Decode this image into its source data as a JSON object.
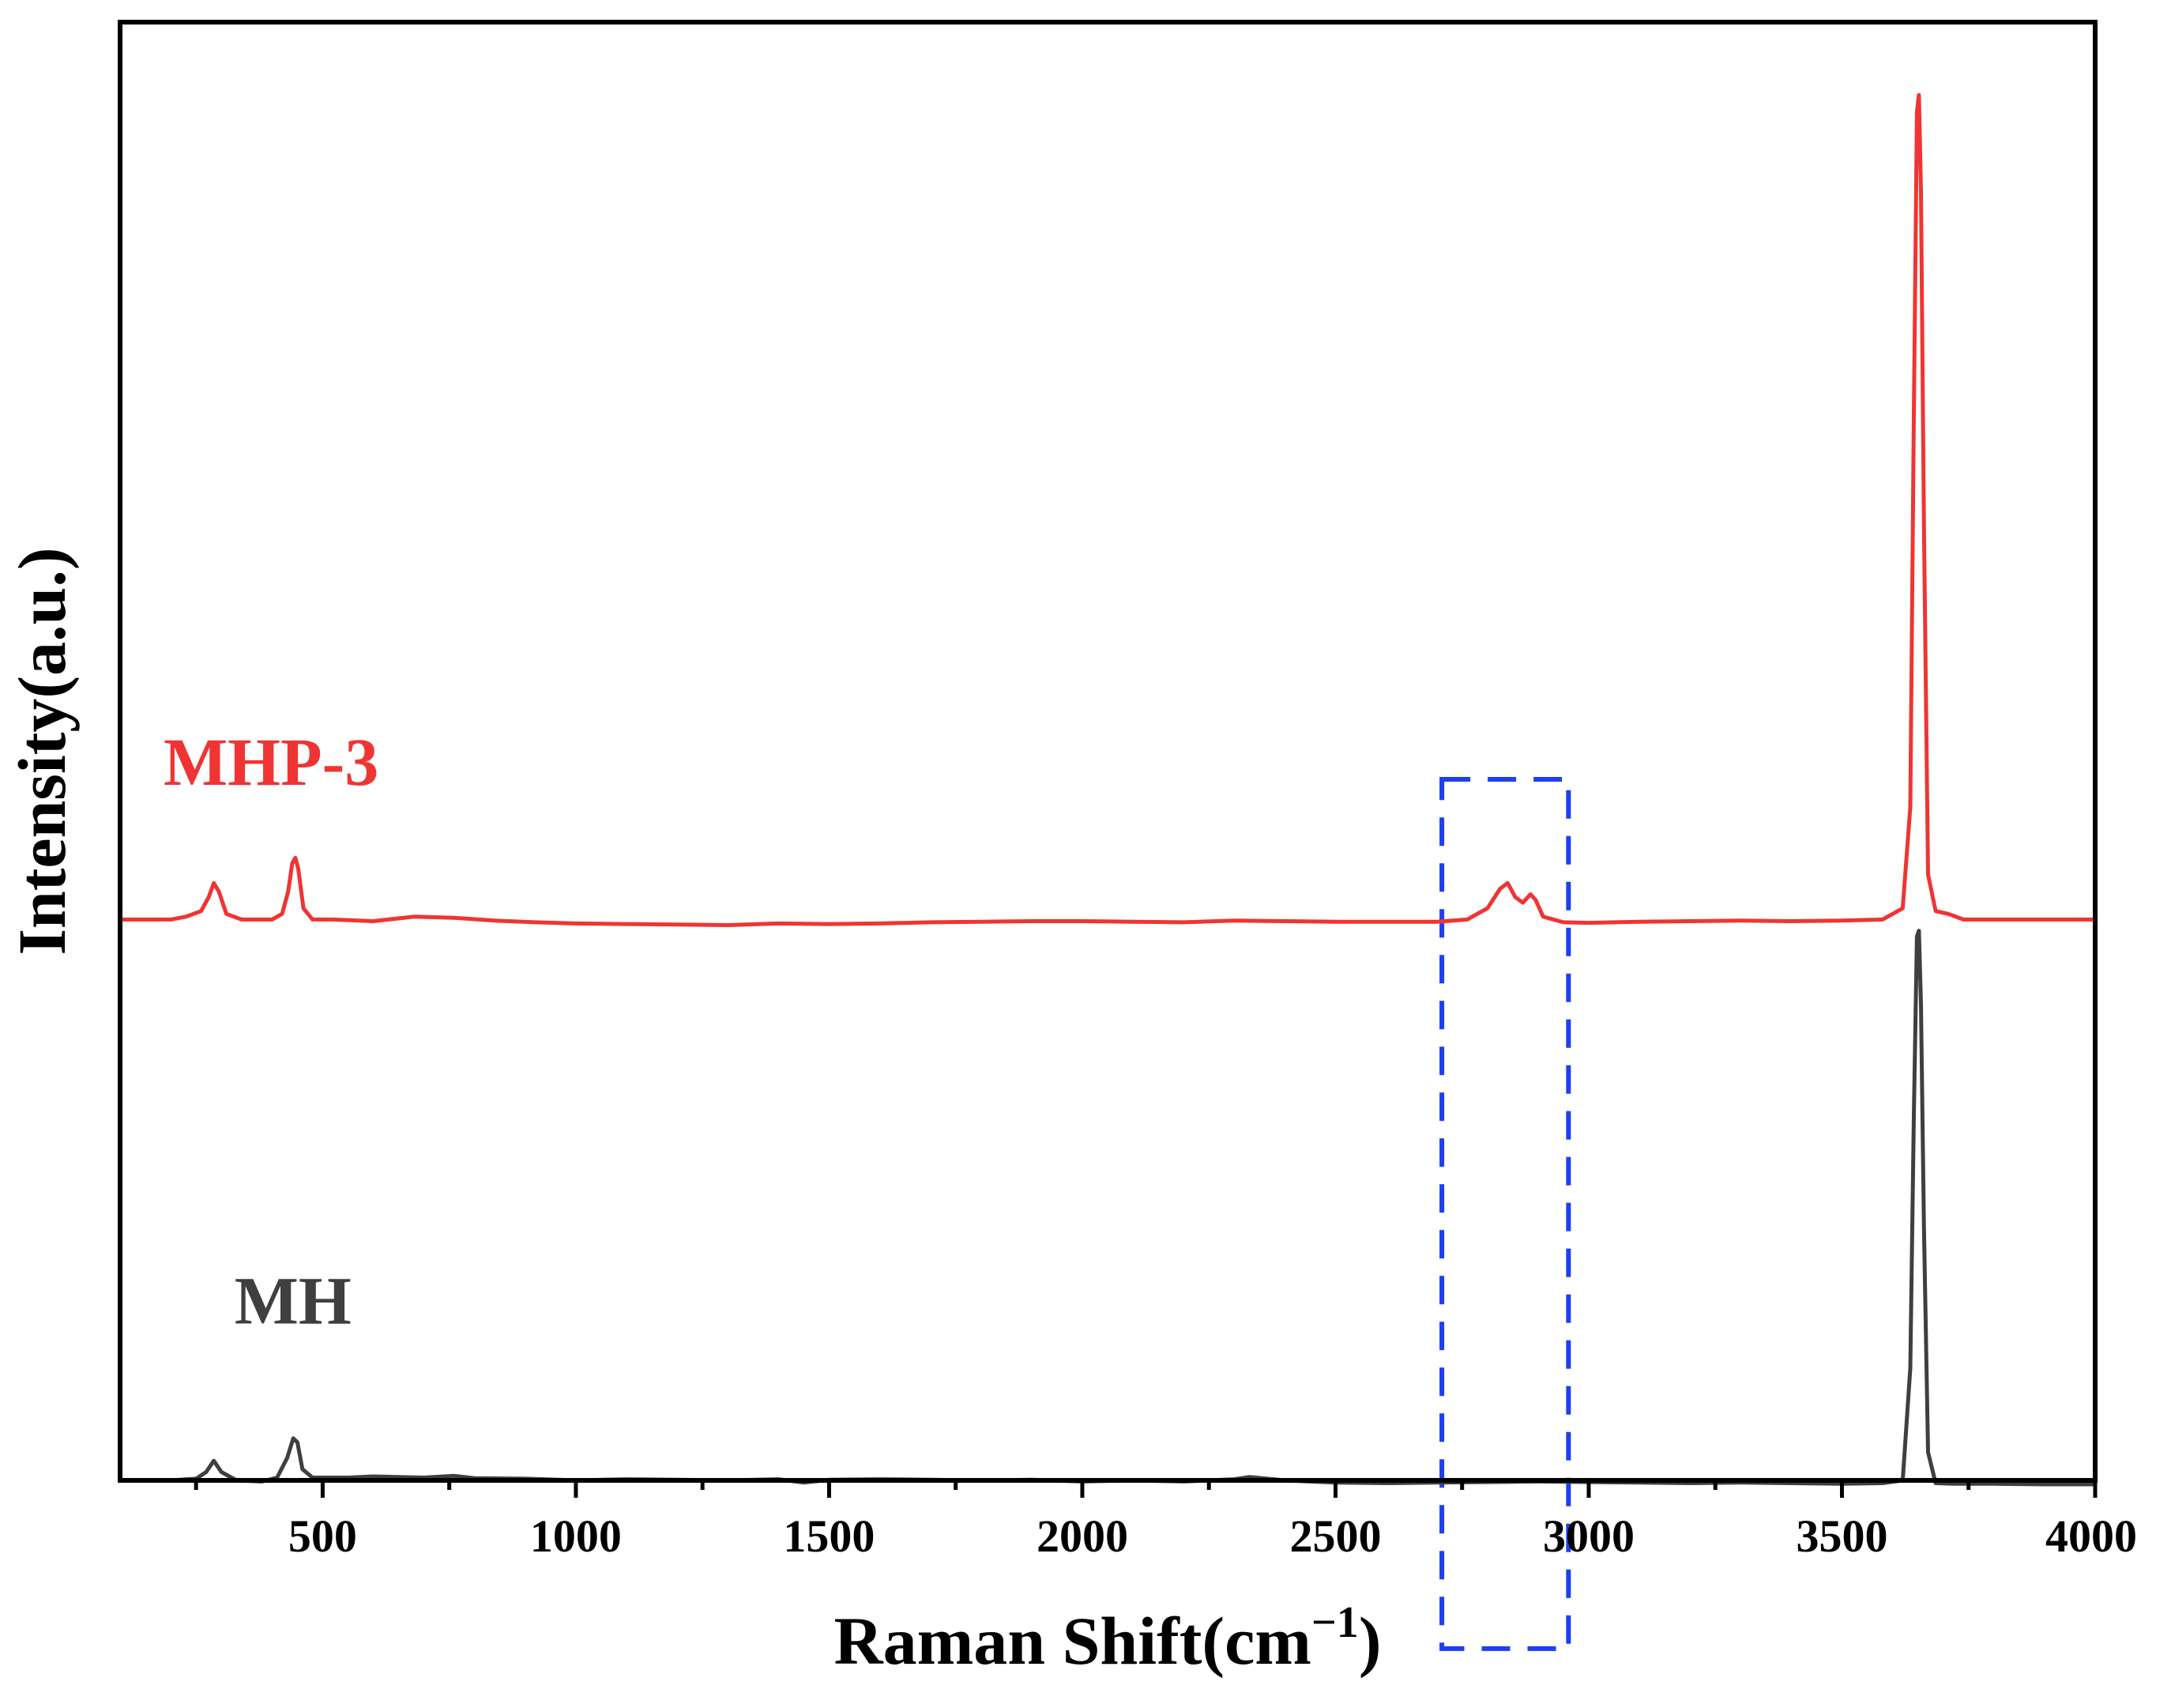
{
  "chart_data": {
    "type": "line",
    "xlabel": "Raman Shift(cm",
    "xlabel_sup": "−1",
    "xlabel_close": ")",
    "ylabel": "Intensity(a.u.)",
    "xlim": [
      100,
      4000
    ],
    "ylim": [
      0,
      2.6
    ],
    "x_ticks": [
      500,
      1000,
      1500,
      2000,
      2500,
      3000,
      3500,
      4000
    ],
    "x_minor_step": 250,
    "y_ticks_shown": false,
    "grid": false,
    "legend": "none (series labelled inline)",
    "series": [
      {
        "name": "MHP-3",
        "color": "#f03434",
        "label_at": [
          100,
          1.24
        ],
        "points": [
          [
            100,
            1.0
          ],
          [
            160,
            1.0
          ],
          [
            200,
            1.0
          ],
          [
            230,
            1.005
          ],
          [
            260,
            1.015
          ],
          [
            275,
            1.04
          ],
          [
            285,
            1.065
          ],
          [
            295,
            1.05
          ],
          [
            310,
            1.01
          ],
          [
            340,
            1.0
          ],
          [
            370,
            1.0
          ],
          [
            400,
            1.0
          ],
          [
            420,
            1.01
          ],
          [
            432,
            1.05
          ],
          [
            440,
            1.1
          ],
          [
            446,
            1.11
          ],
          [
            452,
            1.09
          ],
          [
            462,
            1.02
          ],
          [
            480,
            1.0
          ],
          [
            520,
            1.0
          ],
          [
            600,
            0.997
          ],
          [
            680,
            1.005
          ],
          [
            760,
            1.003
          ],
          [
            840,
            0.998
          ],
          [
            920,
            0.995
          ],
          [
            1000,
            0.993
          ],
          [
            1100,
            0.992
          ],
          [
            1200,
            0.991
          ],
          [
            1300,
            0.99
          ],
          [
            1400,
            0.993
          ],
          [
            1500,
            0.992
          ],
          [
            1600,
            0.993
          ],
          [
            1700,
            0.995
          ],
          [
            1800,
            0.996
          ],
          [
            1900,
            0.997
          ],
          [
            2000,
            0.997
          ],
          [
            2100,
            0.996
          ],
          [
            2200,
            0.995
          ],
          [
            2300,
            0.998
          ],
          [
            2400,
            0.997
          ],
          [
            2500,
            0.996
          ],
          [
            2600,
            0.996
          ],
          [
            2700,
            0.996
          ],
          [
            2760,
            1.0
          ],
          [
            2800,
            1.02
          ],
          [
            2825,
            1.055
          ],
          [
            2840,
            1.065
          ],
          [
            2855,
            1.04
          ],
          [
            2870,
            1.03
          ],
          [
            2885,
            1.045
          ],
          [
            2895,
            1.035
          ],
          [
            2910,
            1.005
          ],
          [
            2950,
            0.995
          ],
          [
            3000,
            0.994
          ],
          [
            3100,
            0.996
          ],
          [
            3200,
            0.997
          ],
          [
            3300,
            0.998
          ],
          [
            3400,
            0.997
          ],
          [
            3500,
            0.998
          ],
          [
            3580,
            1.0
          ],
          [
            3620,
            1.02
          ],
          [
            3635,
            1.2
          ],
          [
            3642,
            1.9
          ],
          [
            3648,
            2.44
          ],
          [
            3652,
            2.47
          ],
          [
            3656,
            2.3
          ],
          [
            3662,
            1.7
          ],
          [
            3670,
            1.08
          ],
          [
            3685,
            1.015
          ],
          [
            3710,
            1.01
          ],
          [
            3740,
            1.0
          ],
          [
            3800,
            1.0
          ],
          [
            3900,
            1.0
          ],
          [
            4000,
            1.0
          ]
        ]
      },
      {
        "name": "MH",
        "color": "#3f3f3f",
        "label_at": [
          240,
          0.28
        ],
        "points": [
          [
            100,
            0.0
          ],
          [
            200,
            0.0
          ],
          [
            250,
            0.003
          ],
          [
            270,
            0.015
          ],
          [
            285,
            0.035
          ],
          [
            300,
            0.015
          ],
          [
            330,
            0.0
          ],
          [
            380,
            -0.002
          ],
          [
            410,
            0.005
          ],
          [
            430,
            0.04
          ],
          [
            442,
            0.075
          ],
          [
            450,
            0.068
          ],
          [
            460,
            0.02
          ],
          [
            480,
            0.005
          ],
          [
            550,
            0.005
          ],
          [
            600,
            0.007
          ],
          [
            700,
            0.005
          ],
          [
            760,
            0.008
          ],
          [
            800,
            0.004
          ],
          [
            900,
            0.003
          ],
          [
            1000,
            0.0
          ],
          [
            1100,
            0.002
          ],
          [
            1200,
            0.001
          ],
          [
            1300,
            0.0
          ],
          [
            1400,
            0.002
          ],
          [
            1450,
            -0.004
          ],
          [
            1500,
            0.001
          ],
          [
            1600,
            0.002
          ],
          [
            1700,
            0.001
          ],
          [
            1800,
            0.0
          ],
          [
            1900,
            0.001
          ],
          [
            2000,
            -0.002
          ],
          [
            2100,
            0.0
          ],
          [
            2200,
            -0.002
          ],
          [
            2300,
            0.002
          ],
          [
            2330,
            0.006
          ],
          [
            2400,
            0.0
          ],
          [
            2500,
            -0.004
          ],
          [
            2600,
            -0.005
          ],
          [
            2700,
            -0.004
          ],
          [
            2800,
            -0.003
          ],
          [
            2900,
            -0.002
          ],
          [
            3000,
            -0.003
          ],
          [
            3100,
            -0.004
          ],
          [
            3200,
            -0.005
          ],
          [
            3300,
            -0.004
          ],
          [
            3400,
            -0.005
          ],
          [
            3500,
            -0.006
          ],
          [
            3580,
            -0.005
          ],
          [
            3620,
            0.0
          ],
          [
            3635,
            0.2
          ],
          [
            3642,
            0.65
          ],
          [
            3648,
            0.97
          ],
          [
            3652,
            0.98
          ],
          [
            3656,
            0.85
          ],
          [
            3662,
            0.45
          ],
          [
            3670,
            0.05
          ],
          [
            3685,
            -0.005
          ],
          [
            3720,
            -0.006
          ],
          [
            3800,
            -0.006
          ],
          [
            3900,
            -0.007
          ],
          [
            4000,
            -0.007
          ]
        ]
      }
    ],
    "annotations": [
      {
        "type": "dashed-rectangle",
        "color": "#1f3ff0",
        "x_range": [
          2710,
          2960
        ],
        "y_range": [
          -0.3,
          1.25
        ]
      }
    ]
  }
}
